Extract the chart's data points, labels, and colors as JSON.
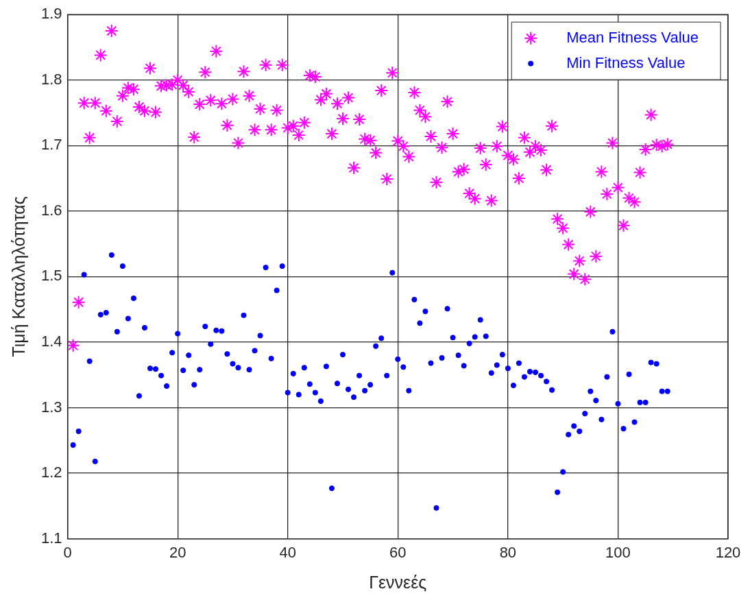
{
  "chart_data": {
    "type": "scatter",
    "xlabel": "Γεννεές",
    "ylabel": "Τιμή Καταλληλότητας",
    "x": [
      1,
      2,
      3,
      4,
      5,
      6,
      7,
      8,
      9,
      10,
      11,
      12,
      13,
      14,
      15,
      16,
      17,
      18,
      19,
      20,
      21,
      22,
      23,
      24,
      25,
      26,
      27,
      28,
      29,
      30,
      31,
      32,
      33,
      34,
      35,
      36,
      37,
      38,
      39,
      40,
      41,
      42,
      43,
      44,
      45,
      46,
      47,
      48,
      49,
      50,
      51,
      52,
      53,
      54,
      55,
      56,
      57,
      58,
      59,
      60,
      61,
      62,
      63,
      64,
      65,
      66,
      67,
      68,
      69,
      70,
      71,
      72,
      73,
      74,
      75,
      76,
      77,
      78,
      79,
      80,
      81,
      82,
      83,
      84,
      85,
      86,
      87,
      88,
      89,
      90,
      91,
      92,
      93,
      94,
      95,
      96,
      97,
      98,
      99,
      100,
      101,
      102,
      103,
      104,
      105,
      106,
      107,
      108,
      109
    ],
    "series": [
      {
        "name": "Mean Fitness Value",
        "color": "#ff00ff",
        "marker": "cross",
        "values": [
          1.395,
          1.461,
          1.765,
          1.712,
          1.765,
          1.838,
          1.753,
          1.875,
          1.737,
          1.776,
          1.788,
          1.786,
          1.759,
          1.753,
          1.818,
          1.751,
          1.791,
          1.792,
          1.793,
          1.8,
          1.792,
          1.782,
          1.713,
          1.763,
          1.812,
          1.769,
          1.844,
          1.764,
          1.731,
          1.771,
          1.704,
          1.813,
          1.776,
          1.724,
          1.756,
          1.823,
          1.724,
          1.754,
          1.823,
          1.727,
          1.73,
          1.716,
          1.735,
          1.807,
          1.805,
          1.77,
          1.779,
          1.718,
          1.764,
          1.741,
          1.773,
          1.666,
          1.74,
          1.71,
          1.708,
          1.689,
          1.784,
          1.649,
          1.811,
          1.707,
          1.699,
          1.683,
          1.781,
          1.754,
          1.744,
          1.714,
          1.644,
          1.697,
          1.767,
          1.718,
          1.66,
          1.664,
          1.627,
          1.619,
          1.696,
          1.671,
          1.616,
          1.699,
          1.729,
          1.685,
          1.679,
          1.65,
          1.712,
          1.69,
          1.699,
          1.693,
          1.663,
          1.73,
          1.588,
          1.574,
          1.549,
          1.504,
          1.524,
          1.496,
          1.599,
          1.531,
          1.66,
          1.626,
          1.704,
          1.636,
          1.578,
          1.62,
          1.614,
          1.659,
          1.694,
          1.747,
          1.701,
          1.699,
          1.702
        ]
      },
      {
        "name": "Min Fitness Value",
        "color": "#0000ff",
        "marker": "circle",
        "values": [
          1.243,
          1.264,
          1.503,
          1.371,
          1.218,
          1.442,
          1.445,
          1.533,
          1.416,
          1.516,
          1.436,
          1.467,
          1.318,
          1.422,
          1.36,
          1.359,
          1.349,
          1.333,
          1.384,
          1.413,
          1.357,
          1.38,
          1.335,
          1.358,
          1.424,
          1.397,
          1.418,
          1.417,
          1.382,
          1.367,
          1.361,
          1.441,
          1.358,
          1.387,
          1.41,
          1.514,
          1.375,
          1.479,
          1.516,
          1.323,
          1.352,
          1.32,
          1.361,
          1.336,
          1.323,
          1.31,
          1.363,
          1.177,
          1.337,
          1.381,
          1.328,
          1.316,
          1.349,
          1.326,
          1.335,
          1.394,
          1.406,
          1.349,
          1.506,
          1.374,
          1.362,
          1.326,
          1.465,
          1.429,
          1.447,
          1.368,
          1.147,
          1.376,
          1.451,
          1.407,
          1.38,
          1.364,
          1.398,
          1.408,
          1.434,
          1.409,
          1.353,
          1.365,
          1.381,
          1.36,
          1.334,
          1.368,
          1.347,
          1.355,
          1.354,
          1.349,
          1.34,
          1.327,
          1.171,
          1.202,
          1.259,
          1.272,
          1.264,
          1.291,
          1.325,
          1.311,
          1.282,
          1.347,
          1.416,
          1.306,
          1.268,
          1.351,
          1.278,
          1.308,
          1.308,
          1.369,
          1.367,
          1.325,
          1.325
        ]
      }
    ],
    "xlim": [
      0,
      120
    ],
    "xticks": [
      0,
      20,
      40,
      60,
      80,
      100,
      120
    ],
    "ylim": [
      1.1,
      1.9
    ],
    "yticks": [
      1.1,
      1.2,
      1.3,
      1.4,
      1.5,
      1.6,
      1.7,
      1.8,
      1.9
    ],
    "grid": true,
    "legend": "top right"
  }
}
